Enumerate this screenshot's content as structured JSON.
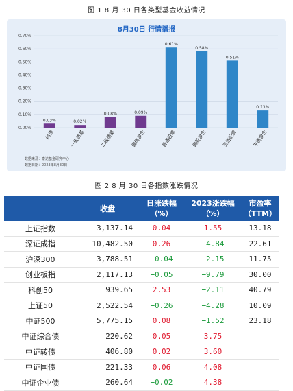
{
  "fig1_caption": "图 1   8 月 30 日各类型基金收益情况",
  "fig2_caption": "图 2   8 月 30 日各指数涨跌情况",
  "chart_data": {
    "type": "bar",
    "title": "8月30日  行情播报",
    "categories": [
      "纯债",
      "一级债基",
      "二级债基",
      "偏债混合",
      "普通股票",
      "偏股混合",
      "灵活配置",
      "平衡混合"
    ],
    "values": [
      0.03,
      0.02,
      0.08,
      0.09,
      0.61,
      0.58,
      0.51,
      0.13
    ],
    "value_labels": [
      "0.03%",
      "0.02%",
      "0.08%",
      "0.09%",
      "0.61%",
      "0.58%",
      "0.51%",
      "0.13%"
    ],
    "y_ticks": [
      "0.00%",
      "0.10%",
      "0.20%",
      "0.30%",
      "0.40%",
      "0.50%",
      "0.60%",
      "0.70%"
    ],
    "ylim": [
      0,
      0.7
    ],
    "grid": true,
    "colors": [
      "#6f3a8f",
      "#6f3a8f",
      "#6f3a8f",
      "#6f3a8f",
      "#2f86c8",
      "#2f86c8",
      "#2f86c8",
      "#2f86c8"
    ]
  },
  "footnote": {
    "source": "数据来源：泰达基金研究中心",
    "date": "数据日期：2023年8月30日"
  },
  "table": {
    "headers": [
      "",
      "收盘",
      "日涨跌幅\n（%）",
      "2023涨跌幅\n（%）",
      "市盈率\n（TTM）"
    ],
    "rows": [
      {
        "name": "上证指数",
        "close": "3,137.14",
        "day": "0.04",
        "ytd": "1.55",
        "pe": "13.18"
      },
      {
        "name": "深证成指",
        "close": "10,482.50",
        "day": "0.26",
        "ytd": "-4.84",
        "pe": "22.61"
      },
      {
        "name": "沪深300",
        "close": "3,788.51",
        "day": "-0.04",
        "ytd": "-2.15",
        "pe": "11.75"
      },
      {
        "name": "创业板指",
        "close": "2,117.13",
        "day": "-0.05",
        "ytd": "-9.79",
        "pe": "30.00"
      },
      {
        "name": "科创50",
        "close": "939.65",
        "day": "2.53",
        "ytd": "-2.11",
        "pe": "40.79"
      },
      {
        "name": "上证50",
        "close": "2,522.54",
        "day": "-0.26",
        "ytd": "-4.28",
        "pe": "10.09"
      },
      {
        "name": "中证500",
        "close": "5,775.15",
        "day": "0.08",
        "ytd": "-1.52",
        "pe": "23.18"
      },
      {
        "name": "中证综合债",
        "close": "220.62",
        "day": "0.05",
        "ytd": "3.75",
        "pe": ""
      },
      {
        "name": "中证转债",
        "close": "406.80",
        "day": "0.02",
        "ytd": "3.60",
        "pe": ""
      },
      {
        "name": "中证国债",
        "close": "221.33",
        "day": "0.06",
        "ytd": "4.08",
        "pe": ""
      },
      {
        "name": "中证企业债",
        "close": "260.64",
        "day": "-0.02",
        "ytd": "4.38",
        "pe": ""
      }
    ]
  }
}
